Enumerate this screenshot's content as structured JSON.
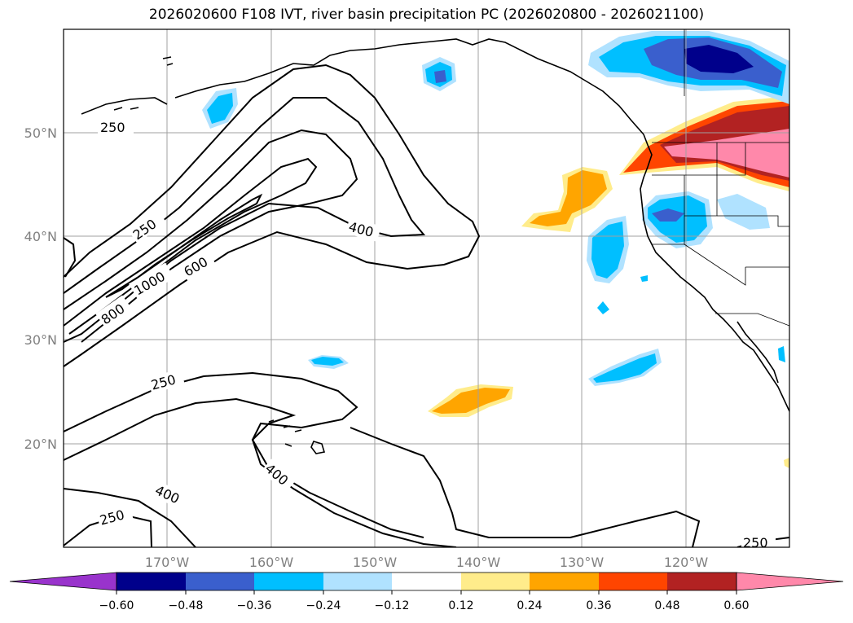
{
  "title": "2026020600 F108 IVT, river basin precipitation PC (2026020800 - 2026021100)",
  "map": {
    "lon_labels": [
      "170°W",
      "160°W",
      "150°W",
      "140°W",
      "130°W",
      "120°W"
    ],
    "lat_labels": [
      "50°N",
      "40°N",
      "30°N",
      "20°N"
    ],
    "contour_labels": [
      {
        "text": "250"
      },
      {
        "text": "250"
      },
      {
        "text": "1000"
      },
      {
        "text": "600"
      },
      {
        "text": "800"
      },
      {
        "text": "400"
      },
      {
        "text": "250"
      },
      {
        "text": "400"
      },
      {
        "text": "400"
      },
      {
        "text": "250"
      },
      {
        "text": "250"
      }
    ],
    "colors": {
      "ocean": "#ffffff",
      "coast": "#000000",
      "grid": "#a0a0a0"
    }
  },
  "colorbar": {
    "tick_labels": [
      "−0.60",
      "−0.48",
      "−0.36",
      "−0.24",
      "−0.12",
      "0.12",
      "0.24",
      "0.36",
      "0.48",
      "0.60"
    ],
    "colors": [
      "#9933cc",
      "#00008b",
      "#3a5fcd",
      "#00bfff",
      "#b0e2ff",
      "#ffffff",
      "#ffec8b",
      "#ffa500",
      "#ff4500",
      "#b22222",
      "#ff88aa"
    ]
  }
}
